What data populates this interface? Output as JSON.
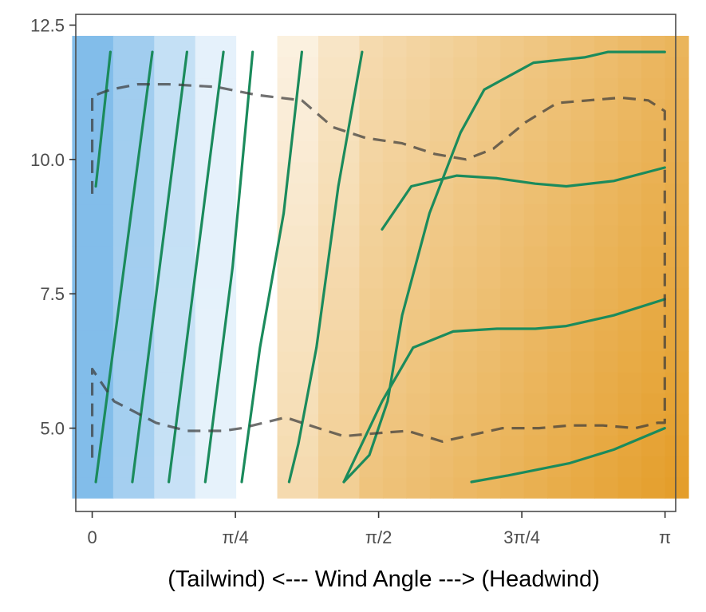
{
  "chart_data": {
    "type": "heatmap",
    "title": "",
    "xlabel": "(Tailwind)  <---  Wind Angle  --->  (Headwind)",
    "ylabel": "",
    "xlim": [
      -0.09,
      3.2
    ],
    "ylim": [
      3.45,
      12.7
    ],
    "x_ticks": [
      {
        "value": 0,
        "label": "0"
      },
      {
        "value": 0.7854,
        "label": "π/4"
      },
      {
        "value": 1.5708,
        "label": "π/2"
      },
      {
        "value": 2.3562,
        "label": "3π/4"
      },
      {
        "value": 3.1416,
        "label": "π"
      }
    ],
    "y_ticks": [
      {
        "value": 5.0,
        "label": "5.0"
      },
      {
        "value": 7.5,
        "label": "7.5"
      },
      {
        "value": 10.0,
        "label": "10.0"
      },
      {
        "value": 12.5,
        "label": "12.5"
      }
    ],
    "grid": false,
    "heatmap": {
      "x_range": [
        -0.11,
        3.27
      ],
      "y_range": [
        3.7,
        12.3
      ],
      "column_edges": [
        -0.11,
        0.115,
        0.34,
        0.565,
        0.79,
        1.015,
        1.24,
        1.465,
        3.27
      ],
      "column_values": [
        -1.0,
        -0.72,
        -0.45,
        -0.2,
        0.0,
        0.12,
        0.22,
        0.3
      ],
      "gradient_x_factor": 0.35,
      "gradient_y_factor": 0.2,
      "negative_color": "#82bdea",
      "neutral_color": "#ffffff",
      "positive_color": "#df8b00"
    },
    "series": [
      {
        "role": "contour",
        "x": [
          0.02,
          0.1
        ],
        "y": [
          9.5,
          12.0
        ]
      },
      {
        "role": "contour",
        "x": [
          0.02,
          0.33
        ],
        "y": [
          4.0,
          12.0
        ]
      },
      {
        "role": "contour",
        "x": [
          0.22,
          0.52
        ],
        "y": [
          4.0,
          12.0
        ]
      },
      {
        "role": "contour",
        "x": [
          0.42,
          0.57,
          0.72
        ],
        "y": [
          4.0,
          8.0,
          12.0
        ]
      },
      {
        "role": "contour",
        "x": [
          0.62,
          0.77,
          0.88
        ],
        "y": [
          4.0,
          8.0,
          12.0
        ]
      },
      {
        "role": "contour",
        "x": [
          0.82,
          0.92,
          1.05,
          1.15
        ],
        "y": [
          4.0,
          6.5,
          9.0,
          12.0
        ]
      },
      {
        "role": "contour",
        "x": [
          1.08,
          1.13,
          1.23,
          1.35,
          1.48
        ],
        "y": [
          4.0,
          4.7,
          6.5,
          9.5,
          12.0
        ]
      },
      {
        "role": "contour",
        "x": [
          1.38,
          1.52,
          1.62,
          1.7,
          1.85,
          2.02,
          2.15,
          2.42,
          2.7,
          2.83,
          3.14
        ],
        "y": [
          4.0,
          4.5,
          5.5,
          7.1,
          9.0,
          10.5,
          11.3,
          11.8,
          11.9,
          12.0,
          12.0
        ]
      },
      {
        "role": "contour",
        "x": [
          1.38,
          1.59,
          1.76,
          1.98,
          2.22,
          2.43,
          2.6,
          2.86,
          3.14
        ],
        "y": [
          4.0,
          5.5,
          6.5,
          6.8,
          6.85,
          6.85,
          6.9,
          7.1,
          7.4
        ]
      },
      {
        "role": "contour",
        "x": [
          1.59,
          1.75,
          2.0,
          2.22,
          2.43,
          2.6,
          2.86,
          3.14
        ],
        "y": [
          8.7,
          9.5,
          9.7,
          9.65,
          9.55,
          9.5,
          9.6,
          9.85
        ]
      },
      {
        "role": "contour",
        "x": [
          2.08,
          2.28,
          2.62,
          2.86,
          3.14
        ],
        "y": [
          4.0,
          4.12,
          4.35,
          4.6,
          5.0
        ]
      },
      {
        "role": "envelope",
        "x": [
          0.0,
          0.0,
          0.02,
          0.12,
          0.35,
          0.52,
          0.72,
          0.82,
          0.94,
          1.06,
          1.24,
          1.38,
          1.54,
          1.73,
          1.92,
          2.05,
          2.25,
          2.45,
          2.62,
          2.8,
          2.98,
          3.1,
          3.14,
          3.14,
          3.05,
          2.9,
          2.72,
          2.55,
          2.38,
          2.2,
          2.05,
          1.88,
          1.7,
          1.5,
          1.32,
          1.15,
          0.9,
          0.68,
          0.42,
          0.25,
          0.1,
          0.02,
          0.0,
          0.0
        ],
        "y": [
          4.45,
          6.1,
          6.0,
          5.5,
          5.1,
          4.95,
          4.95,
          5.0,
          5.1,
          5.2,
          5.0,
          4.85,
          4.9,
          4.95,
          4.75,
          4.85,
          5.0,
          5.0,
          5.05,
          5.05,
          5.0,
          5.1,
          5.1,
          10.9,
          11.1,
          11.15,
          11.1,
          11.05,
          10.7,
          10.2,
          10.0,
          10.1,
          10.3,
          10.4,
          10.6,
          11.1,
          11.2,
          11.35,
          11.4,
          11.4,
          11.3,
          11.2,
          11.2,
          9.35
        ]
      }
    ]
  }
}
